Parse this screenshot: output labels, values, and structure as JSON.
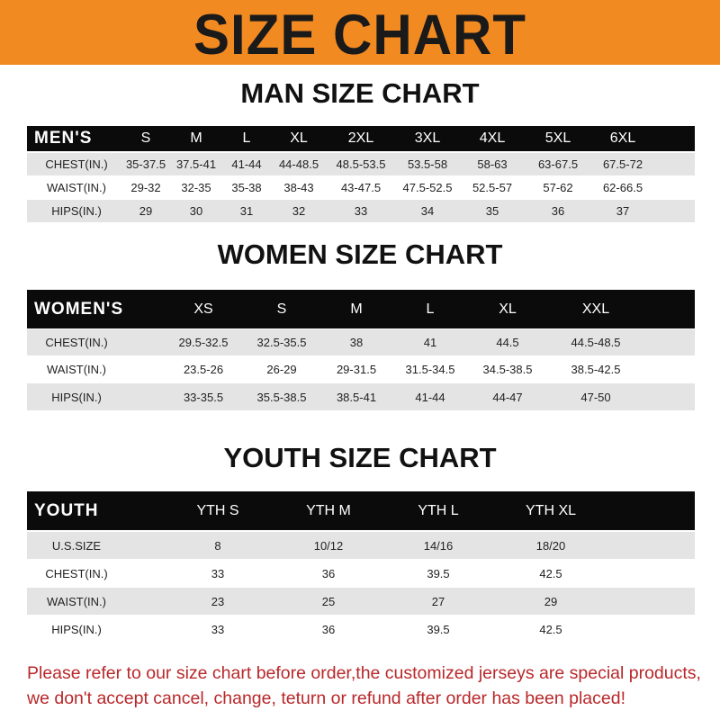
{
  "banner": {
    "title": "SIZE CHART",
    "color": "#f28a22"
  },
  "men": {
    "title": "MAN SIZE CHART",
    "header": [
      "MEN'S",
      "S",
      "M",
      "L",
      "XL",
      "2XL",
      "3XL",
      "4XL",
      "5XL",
      "6XL"
    ],
    "rows": [
      [
        "CHEST(IN.)",
        "35-37.5",
        "37.5-41",
        "41-44",
        "44-48.5",
        "48.5-53.5",
        "53.5-58",
        "58-63",
        "63-67.5",
        "67.5-72"
      ],
      [
        "WAIST(IN.)",
        "29-32",
        "32-35",
        "35-38",
        "38-43",
        "43-47.5",
        "47.5-52.5",
        "52.5-57",
        "57-62",
        "62-66.5"
      ],
      [
        "HIPS(IN.)",
        "29",
        "30",
        "31",
        "32",
        "33",
        "34",
        "35",
        "36",
        "37"
      ]
    ]
  },
  "women": {
    "title": "WOMEN SIZE CHART",
    "header": [
      "WOMEN'S",
      "XS",
      "S",
      "M",
      "L",
      "XL",
      "XXL"
    ],
    "rows": [
      [
        "CHEST(IN.)",
        "29.5-32.5",
        "32.5-35.5",
        "38",
        "41",
        "44.5",
        "44.5-48.5"
      ],
      [
        "WAIST(IN.)",
        "23.5-26",
        "26-29",
        "29-31.5",
        "31.5-34.5",
        "34.5-38.5",
        "38.5-42.5"
      ],
      [
        "HIPS(IN.)",
        "33-35.5",
        "35.5-38.5",
        "38.5-41",
        "41-44",
        "44-47",
        "47-50"
      ]
    ]
  },
  "youth": {
    "title": "YOUTH SIZE CHART",
    "header": [
      "YOUTH",
      "YTH S",
      "YTH M",
      "YTH L",
      "YTH XL"
    ],
    "rows": [
      [
        "U.S.SIZE",
        "8",
        "10/12",
        "14/16",
        "18/20"
      ],
      [
        "CHEST(IN.)",
        "33",
        "36",
        "39.5",
        "42.5"
      ],
      [
        "WAIST(IN.)",
        "23",
        "25",
        "27",
        "29"
      ],
      [
        "HIPS(IN.)",
        "33",
        "36",
        "39.5",
        "42.5"
      ]
    ]
  },
  "footer": {
    "line1": "Please refer to our size chart before order,the customized jerseys are special products,",
    "line2": "we don't accept cancel, change, teturn or refund after order has been placed!",
    "color": "#b8282a"
  }
}
